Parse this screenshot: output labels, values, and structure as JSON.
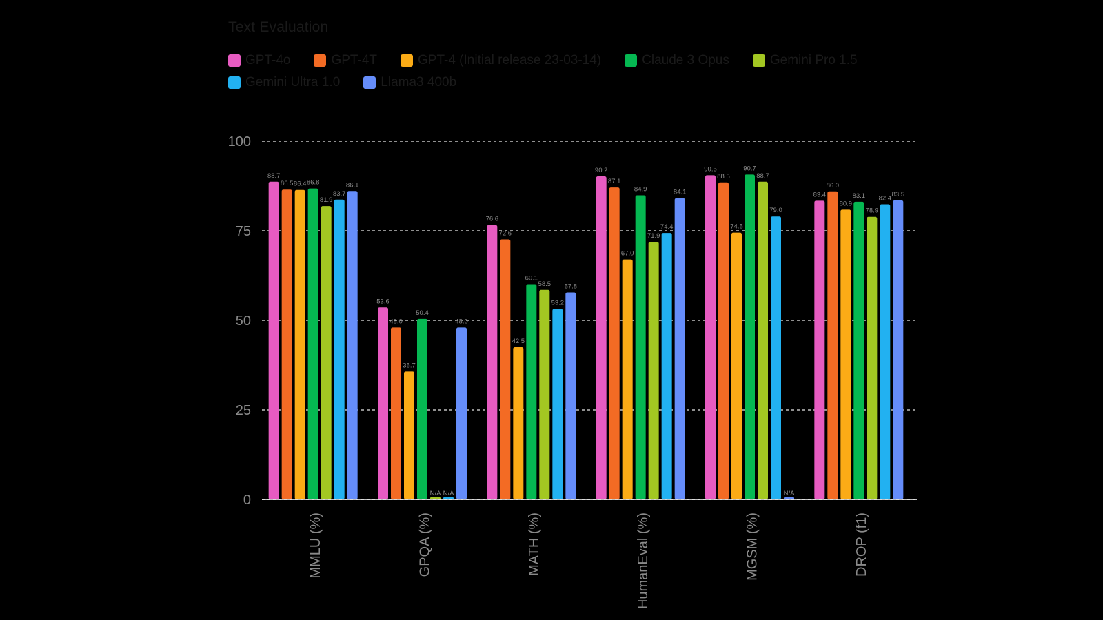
{
  "chart_data": {
    "type": "bar",
    "title": "Text Evaluation",
    "xlabel": "",
    "ylabel": "",
    "ylim": [
      0,
      100
    ],
    "yticks": [
      0,
      25,
      50,
      75,
      100
    ],
    "grid": true,
    "legend_position": "top-left",
    "categories": [
      "MMLU (%)",
      "GPQA (%)",
      "MATH (%)",
      "HumanEval (%)",
      "MGSM (%)",
      "DROP (f1)"
    ],
    "series": [
      {
        "name": "GPT-4o",
        "color": "#e75bc1",
        "values": [
          88.7,
          53.6,
          76.6,
          90.2,
          90.5,
          83.4
        ],
        "labels": [
          "88.7",
          "53.6",
          "76.6",
          "90.2",
          "90.5",
          "83.4"
        ]
      },
      {
        "name": "GPT-4T",
        "color": "#f36b24",
        "values": [
          86.5,
          48.0,
          72.6,
          87.1,
          88.5,
          86.0
        ],
        "labels": [
          "86.5",
          "48.0",
          "72.6",
          "87.1",
          "88.5",
          "86.0"
        ]
      },
      {
        "name": "GPT-4 (Initial release 23-03-14)",
        "color": "#fbab16",
        "values": [
          86.4,
          35.7,
          42.5,
          67.0,
          74.5,
          80.9
        ],
        "labels": [
          "86.4",
          "35.7",
          "42.5",
          "67.0",
          "74.5",
          "80.9"
        ]
      },
      {
        "name": "Claude 3 Opus",
        "color": "#05b852",
        "values": [
          86.8,
          50.4,
          60.1,
          84.9,
          90.7,
          83.1
        ],
        "labels": [
          "86.8",
          "50.4",
          "60.1",
          "84.9",
          "90.7",
          "83.1"
        ]
      },
      {
        "name": "Gemini Pro 1.5",
        "color": "#a3c722",
        "values": [
          81.9,
          null,
          58.5,
          71.9,
          88.7,
          78.9
        ],
        "labels": [
          "81.9",
          "N/A",
          "58.5",
          "71.9",
          "88.7",
          "78.9"
        ]
      },
      {
        "name": "Gemini Ultra 1.0",
        "color": "#22b1f1",
        "values": [
          83.7,
          null,
          53.2,
          74.4,
          79.0,
          82.4
        ],
        "labels": [
          "83.7",
          "N/A",
          "53.2",
          "74.4",
          "79.0",
          "82.4"
        ]
      },
      {
        "name": "Llama3 400b",
        "color": "#658dfa",
        "values": [
          86.1,
          48.0,
          57.8,
          84.1,
          null,
          83.5
        ],
        "labels": [
          "86.1",
          "48.0",
          "57.8",
          "84.1",
          "N/A",
          "83.5"
        ]
      }
    ]
  }
}
